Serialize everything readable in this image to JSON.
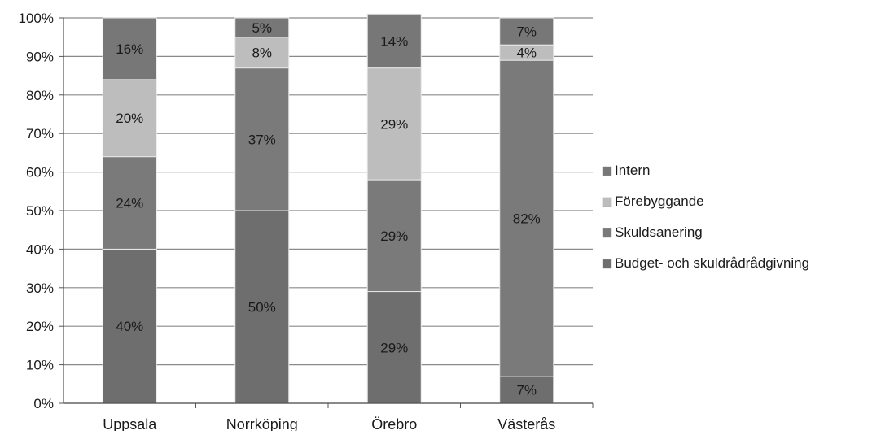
{
  "chart_data": {
    "type": "bar",
    "stacked": true,
    "categories": [
      "Uppsala",
      "Norrköping",
      "Örebro",
      "Västerås"
    ],
    "series": [
      {
        "name": "Budget- och skuldrådrådgivning",
        "values": [
          40,
          50,
          29,
          7
        ],
        "labels": [
          "40%",
          "50%",
          "29%",
          "7%"
        ],
        "color": "#6e6e6e"
      },
      {
        "name": "Skuldsanering",
        "values": [
          24,
          37,
          29,
          82
        ],
        "labels": [
          "24%",
          "37%",
          "29%",
          "82%"
        ],
        "color": "#7a7a7a"
      },
      {
        "name": "Förebyggande",
        "values": [
          20,
          8,
          29,
          4
        ],
        "labels": [
          "20%",
          "8%",
          "29%",
          "4%"
        ],
        "color": "#bdbdbd"
      },
      {
        "name": "Intern",
        "values": [
          16,
          5,
          14,
          7
        ],
        "labels": [
          "16%",
          "5%",
          "14%",
          "7%"
        ],
        "color": "#777777"
      }
    ],
    "y_ticks": [
      "0%",
      "10%",
      "20%",
      "30%",
      "40%",
      "50%",
      "60%",
      "70%",
      "80%",
      "90%",
      "100%"
    ],
    "ylim": [
      0,
      100
    ],
    "grid": true,
    "legend_position": "right"
  }
}
